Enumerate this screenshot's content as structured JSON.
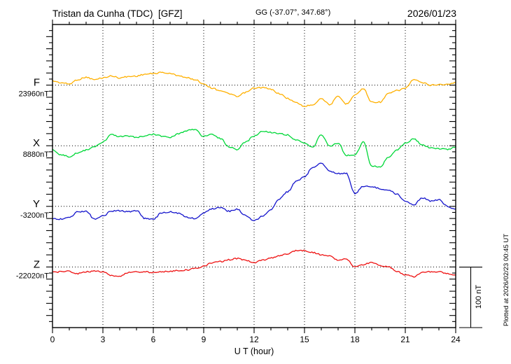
{
  "header": {
    "title": "Tristan da Cunha (TDC)  [GFZ]",
    "coords": "GG (-37.07°, 347.68°)",
    "date": "2026/01/23"
  },
  "footer_note": "Plotted at 2026/02/23 00:45 UT",
  "scale_bar": {
    "label": "100 nT",
    "nT": 100
  },
  "x_axis": {
    "label": "U T (hour)",
    "ticks": [
      0,
      3,
      6,
      9,
      12,
      15,
      18,
      21,
      24
    ],
    "minor_step_hours": 1,
    "range": [
      0,
      24
    ]
  },
  "chart_data": {
    "type": "line",
    "title": "Magnetogram Tristan da Cunha (TDC), GFZ, 2026/01/23",
    "xlabel": "U T (hour)",
    "x_range_hours": [
      0,
      24
    ],
    "x_step_hours": 0.5,
    "x_major_tick_hours": 3,
    "x_minor_tick_hours": 1,
    "y_tick_nT": 20,
    "y_total_range_nT": 500,
    "grid": "dotted vertical lines every 3 h; dotted horizontal line at each component baseline",
    "legend_position": "left margin, one colored label per component",
    "series": [
      {
        "name": "F",
        "baseline_label": "23960nT",
        "baseline_nT": 23960,
        "color": "#FFB000",
        "values_nT": [
          23967,
          23964,
          23962,
          23969,
          23973,
          23969,
          23972,
          23975,
          23972,
          23974,
          23975,
          23978,
          23979,
          23981,
          23979,
          23976,
          23972,
          23969,
          23962,
          23955,
          23951,
          23946,
          23941,
          23948,
          23955,
          23956,
          23953,
          23946,
          23938,
          23931,
          23925,
          23928,
          23938,
          23928,
          23941,
          23929,
          23944,
          23954,
          23932,
          23932,
          23946,
          23951,
          23955,
          23969,
          23964,
          23960,
          23961,
          23961,
          23964
        ]
      },
      {
        "name": "X",
        "baseline_label": "8880nT",
        "baseline_nT": 8880,
        "color": "#00D838",
        "values_nT": [
          8874,
          8865,
          8862,
          8868,
          8873,
          8878,
          8886,
          8898,
          8895,
          8896,
          8894,
          8896,
          8899,
          8896,
          8894,
          8900,
          8905,
          8907,
          8895,
          8899,
          8892,
          8878,
          8874,
          8886,
          8896,
          8904,
          8902,
          8900,
          8898,
          8889,
          8884,
          8878,
          8898,
          8880,
          8884,
          8864,
          8865,
          8886,
          8847,
          8845,
          8861,
          8873,
          8884,
          8891,
          8882,
          8876,
          8875,
          8874,
          8878
        ]
      },
      {
        "name": "Y",
        "baseline_label": "-3200nT",
        "baseline_nT": -3200,
        "color": "#1414CC",
        "values_nT": [
          -3220,
          -3221,
          -3219,
          -3209,
          -3208,
          -3221,
          -3216,
          -3208,
          -3207,
          -3209,
          -3207,
          -3220,
          -3221,
          -3211,
          -3209,
          -3211,
          -3218,
          -3220,
          -3211,
          -3204,
          -3202,
          -3208,
          -3205,
          -3215,
          -3224,
          -3216,
          -3205,
          -3188,
          -3176,
          -3159,
          -3151,
          -3135,
          -3128,
          -3142,
          -3146,
          -3146,
          -3179,
          -3167,
          -3167,
          -3171,
          -3173,
          -3180,
          -3191,
          -3198,
          -3186,
          -3191,
          -3189,
          -3200,
          -3205
        ]
      },
      {
        "name": "Z",
        "baseline_label": "-22020nT",
        "baseline_nT": -22020,
        "color": "#EE1111",
        "values_nT": [
          -22029,
          -22028,
          -22027,
          -22031,
          -22028,
          -22027,
          -22028,
          -22034,
          -22036,
          -22029,
          -22028,
          -22028,
          -22029,
          -22028,
          -22027,
          -22026,
          -22025,
          -22022,
          -22019,
          -22013,
          -22011,
          -22008,
          -22006,
          -22009,
          -22013,
          -22009,
          -22005,
          -22002,
          -21998,
          -21993,
          -21993,
          -21996,
          -22000,
          -22002,
          -22009,
          -22007,
          -22020,
          -22016,
          -22012,
          -22018,
          -22020,
          -22027,
          -22033,
          -22036,
          -22029,
          -22028,
          -22028,
          -22031,
          -22034
        ]
      }
    ]
  }
}
